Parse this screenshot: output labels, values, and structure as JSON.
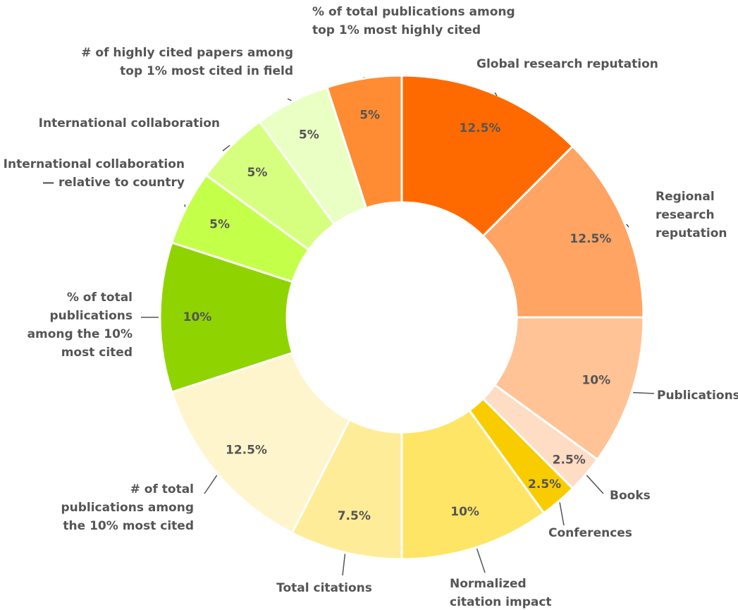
{
  "chart_data": {
    "type": "donut",
    "categories": [
      "Global research reputation",
      "Regional research reputation",
      "Publications",
      "Books",
      "Conferences",
      "Normalized citation impact",
      "Total citations",
      "# of total publications among the 10% most cited",
      "% of total publications among the 10% most cited",
      "International collaboration — relative to country",
      "International collaboration",
      "# of highly cited papers among top 1% most cited in field",
      "% of total publications among top 1% most highly cited"
    ],
    "values": [
      12.5,
      12.5,
      10,
      2.5,
      2.5,
      10,
      7.5,
      12.5,
      10,
      5,
      5,
      5,
      5
    ],
    "value_labels": [
      "12.5%",
      "12.5%",
      "10%",
      "2.5%",
      "2.5%",
      "10%",
      "7.5%",
      "12.5%",
      "10%",
      "5%",
      "5%",
      "5%",
      "5%"
    ],
    "colors": [
      "#ff6a00",
      "#ffa463",
      "#ffc396",
      "#ffdcc4",
      "#f9cc00",
      "#ffe566",
      "#ffec99",
      "#fff5cc",
      "#8fd400",
      "#c4ff4a",
      "#d6ff80",
      "#eaffc4",
      "#ff8c33"
    ]
  }
}
